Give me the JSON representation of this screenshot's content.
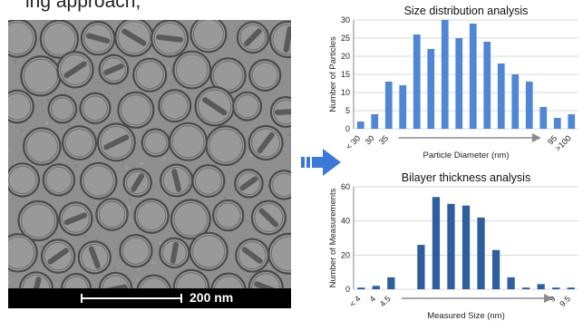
{
  "top_caption": "ing approach,",
  "micrograph": {
    "scale_label": "200 nm"
  },
  "colors": {
    "bar_light": "#4f86d6",
    "bar_dark": "#2f5e9e",
    "grid": "#d9d9d9",
    "axis_arrow": "#8c8c8c",
    "flow_arrow": "#3c78d8"
  },
  "chart_data": [
    {
      "type": "bar",
      "title": "Size distribution analysis",
      "xlabel": "Particle Diameter (nm)",
      "ylabel": "Number of Particles",
      "ylim": [
        0,
        30
      ],
      "yticks": [
        0,
        5,
        10,
        15,
        20,
        25,
        30
      ],
      "grid": true,
      "values": [
        2,
        4,
        13,
        12,
        26,
        22,
        30,
        25,
        29,
        24,
        18,
        15,
        13,
        6,
        3,
        4
      ],
      "tick_labels": [
        {
          "label": "< 30",
          "index": 0
        },
        {
          "label": "30",
          "index": 1
        },
        {
          "label": "35",
          "index": 2
        },
        {
          "label": "95",
          "index": 14
        },
        {
          "label": ">100",
          "index": 15
        }
      ]
    },
    {
      "type": "bar",
      "title": "Bilayer thickness analysis",
      "xlabel": "Measured Size (nm)",
      "ylabel": "Number of Measurements",
      "ylim": [
        0,
        60
      ],
      "yticks": [
        0,
        20,
        40,
        60
      ],
      "grid": true,
      "values": [
        1,
        2,
        7,
        0,
        26,
        54,
        50,
        49,
        42,
        23,
        7,
        1,
        3,
        1,
        1
      ],
      "tick_labels": [
        {
          "label": "< 4",
          "index": 0
        },
        {
          "label": "4",
          "index": 1
        },
        {
          "label": "4.5",
          "index": 2
        },
        {
          "label": "9",
          "index": 13
        },
        {
          "label": "9.5",
          "index": 14
        }
      ]
    }
  ]
}
